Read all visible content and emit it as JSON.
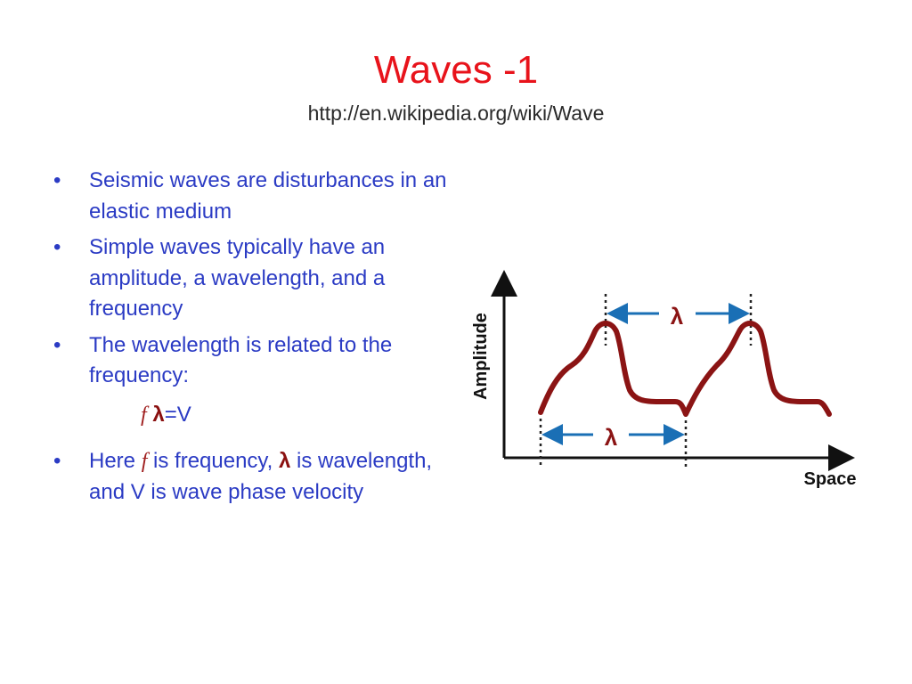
{
  "slide": {
    "title": "Waves -1",
    "subtitle": "http://en.wikipedia.org/wiki/Wave",
    "bullets": [
      "Seismic waves are disturbances in an elastic medium",
      "Simple waves typically have an amplitude, a wavelength, and a frequency",
      "The wavelength is related to the frequency:"
    ],
    "formula": {
      "f": "f",
      "lambda": "λ",
      "rest": "=V"
    },
    "bullet4": {
      "part1": "Here ",
      "f": "f",
      "part2": " is frequency, ",
      "lambda": "λ",
      "part3": " is wavelength, and ",
      "v": "V",
      "part4": " is wave phase velocity"
    },
    "bullet_glyph": "•"
  },
  "figure": {
    "y_axis_label": "Amplitude",
    "x_axis_label": "Space",
    "lambda_top": "λ",
    "lambda_bottom": "λ",
    "wave_color": "#8b1414",
    "arrow_color": "#1a6fb5"
  }
}
